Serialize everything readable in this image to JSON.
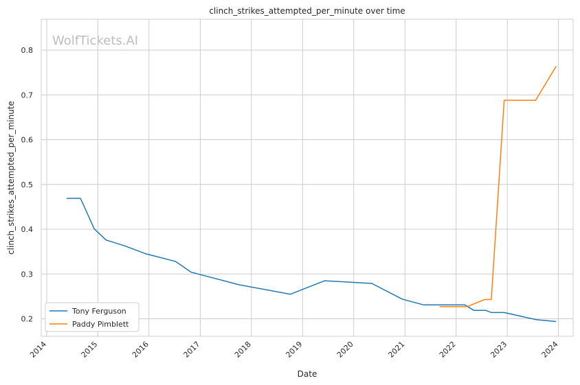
{
  "chart_data": {
    "type": "line",
    "title": "clinch_strikes_attempted_per_minute over time",
    "xlabel": "Date",
    "ylabel": "clinch_strikes_attempted_per_minute",
    "watermark": "WolfTickets.AI",
    "x_ticks": [
      "2014",
      "2015",
      "2016",
      "2017",
      "2018",
      "2019",
      "2020",
      "2021",
      "2022",
      "2023",
      "2024"
    ],
    "y_ticks": [
      "0.2",
      "0.3",
      "0.4",
      "0.5",
      "0.6",
      "0.7",
      "0.8"
    ],
    "xlim": [
      "2013-11-23",
      "2024-04-15"
    ],
    "ylim": [
      0.161,
      0.869
    ],
    "legend_position": "lower-left",
    "grid": true,
    "series": [
      {
        "name": "Tony Ferguson",
        "color": "#1f77b4",
        "points": [
          [
            "2014-05-24",
            0.469
          ],
          [
            "2014-08-30",
            0.469
          ],
          [
            "2014-12-06",
            0.401
          ],
          [
            "2015-02-28",
            0.376
          ],
          [
            "2015-07-11",
            0.363
          ],
          [
            "2015-12-11",
            0.345
          ],
          [
            "2016-07-09",
            0.328
          ],
          [
            "2016-10-29",
            0.304
          ],
          [
            "2017-10-07",
            0.276
          ],
          [
            "2018-10-06",
            0.255
          ],
          [
            "2019-06-08",
            0.285
          ],
          [
            "2020-05-09",
            0.279
          ],
          [
            "2020-12-12",
            0.244
          ],
          [
            "2021-05-15",
            0.231
          ],
          [
            "2022-03-05",
            0.231
          ],
          [
            "2022-05-07",
            0.219
          ],
          [
            "2022-07-30",
            0.219
          ],
          [
            "2022-09-10",
            0.214
          ],
          [
            "2022-12-10",
            0.214
          ],
          [
            "2023-07-29",
            0.198
          ],
          [
            "2023-12-16",
            0.194
          ]
        ]
      },
      {
        "name": "Paddy Pimblett",
        "color": "#ff7f0e",
        "points": [
          [
            "2021-09-04",
            0.227
          ],
          [
            "2022-03-19",
            0.227
          ],
          [
            "2022-07-23",
            0.243
          ],
          [
            "2022-09-09",
            0.243
          ],
          [
            "2022-12-10",
            0.688
          ],
          [
            "2023-07-22",
            0.688
          ],
          [
            "2023-12-16",
            0.764
          ]
        ]
      }
    ]
  }
}
